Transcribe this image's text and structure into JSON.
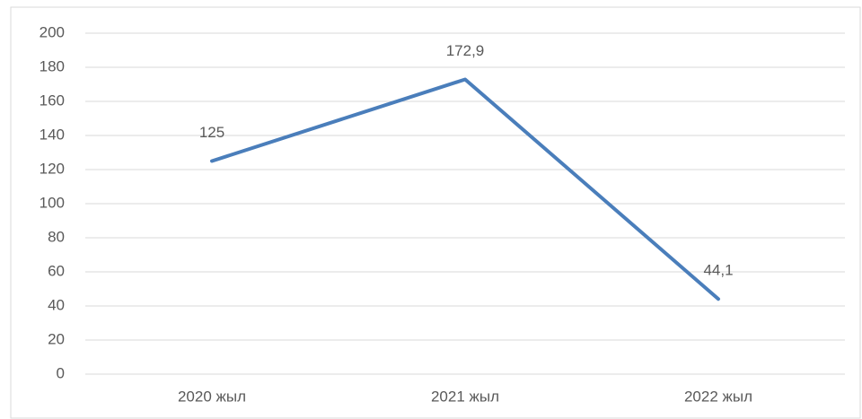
{
  "chart_data": {
    "type": "line",
    "categories": [
      "2020 жыл",
      "2021 жыл",
      "2022 жыл"
    ],
    "values": [
      125,
      172.9,
      44.1
    ],
    "value_labels": [
      "125",
      "172,9",
      "44,1"
    ],
    "color": "#4a7ebb",
    "ylim": [
      0,
      200
    ],
    "yticks": [
      0,
      20,
      40,
      60,
      80,
      100,
      120,
      140,
      160,
      180,
      200
    ],
    "grid": true
  }
}
